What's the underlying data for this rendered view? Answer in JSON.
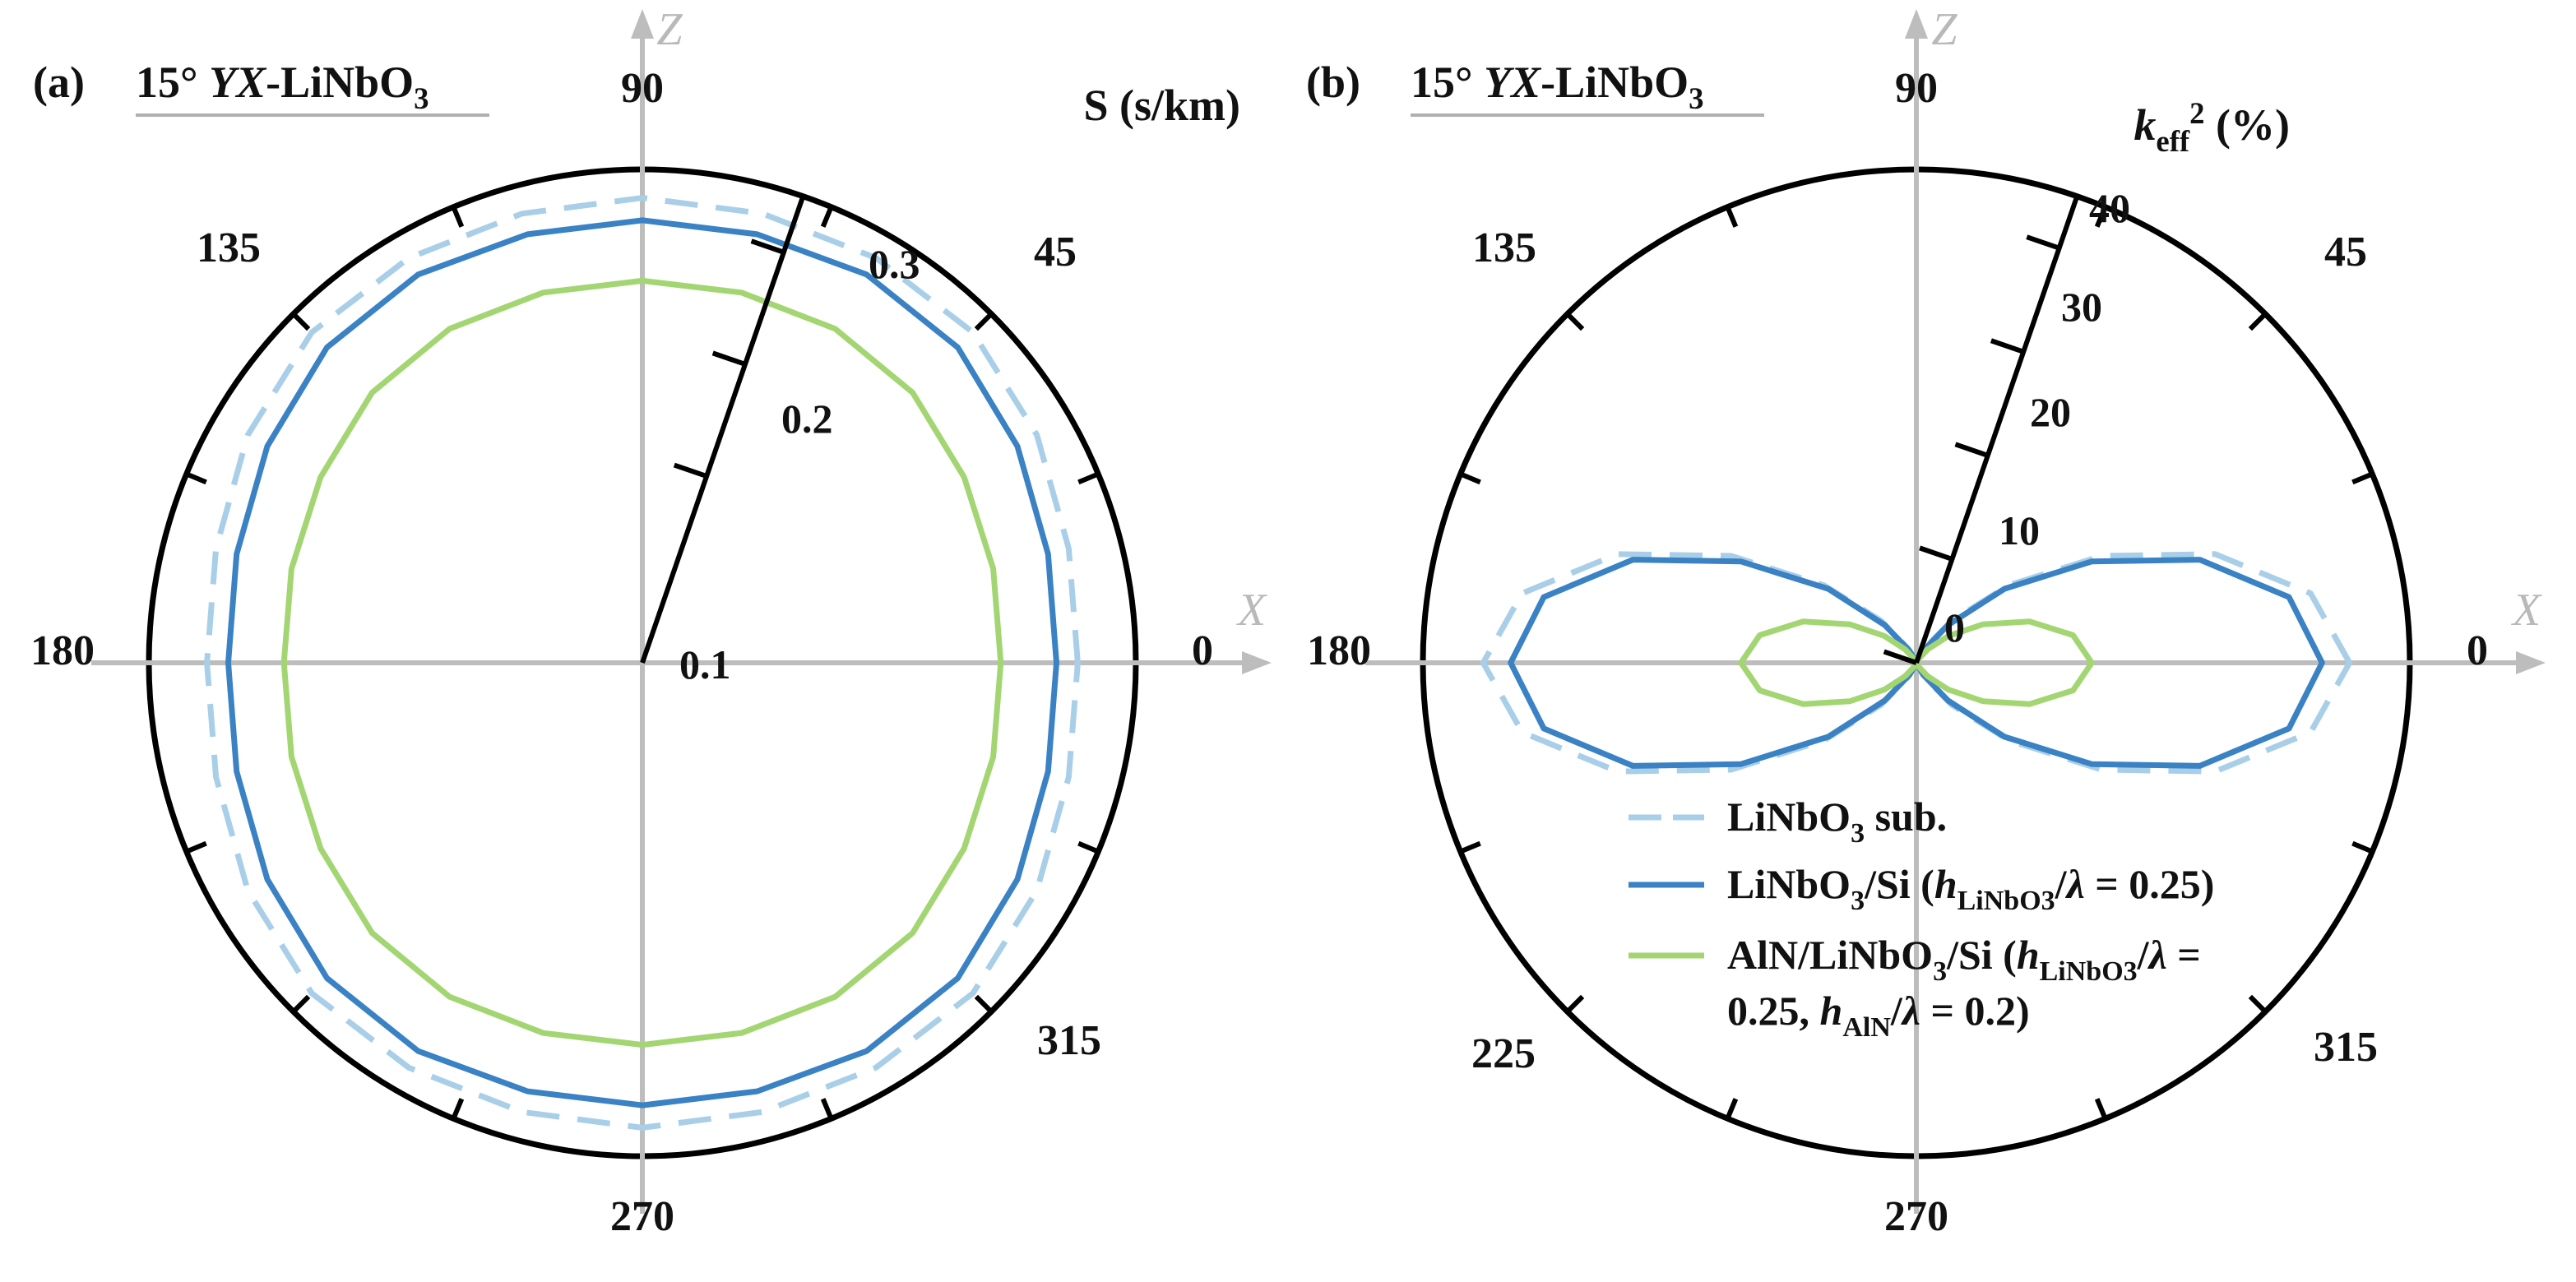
{
  "chart_data": [
    {
      "type": "polar-line",
      "panel_label": "(a)",
      "title": "15° YX-LiNbO3",
      "title_parts": {
        "pre": "15° ",
        "italic": "YX",
        "post": "-LiNbO",
        "sub": "3"
      },
      "radial_axis_label": "S (s/km)",
      "radial_range": [
        0.1,
        0.35
      ],
      "radial_ticks": [
        "0.1",
        "0.2",
        "0.3"
      ],
      "angle_labels": [
        "0",
        "45",
        "90",
        "135",
        "180",
        "270",
        "315"
      ],
      "x_axis_name": "X",
      "z_axis_name": "Z",
      "grid": false,
      "series": [
        {
          "color": "#a9cfe8",
          "dash": true,
          "theta": [
            0,
            15,
            30,
            45,
            60,
            75,
            90,
            105,
            120,
            135,
            150,
            165,
            180,
            195,
            210,
            225,
            240,
            255,
            270,
            285,
            300,
            315,
            330,
            345,
            360
          ],
          "r": [
            0.301,
            0.306,
            0.318,
            0.328,
            0.328,
            0.326,
            0.326,
            0.326,
            0.328,
            0.328,
            0.318,
            0.306,
            0.301,
            0.306,
            0.318,
            0.328,
            0.328,
            0.326,
            0.326,
            0.326,
            0.328,
            0.328,
            0.318,
            0.306,
            0.301
          ]
        },
        {
          "color": "#3a82c4",
          "dash": false,
          "theta": [
            0,
            15,
            30,
            45,
            60,
            75,
            90,
            105,
            120,
            135,
            150,
            165,
            180,
            195,
            210,
            225,
            240,
            255,
            270,
            285,
            300,
            315,
            330,
            345,
            360
          ],
          "r": [
            0.283,
            0.288,
            0.299,
            0.31,
            0.312,
            0.308,
            0.307,
            0.308,
            0.312,
            0.31,
            0.299,
            0.288,
            0.283,
            0.288,
            0.299,
            0.31,
            0.312,
            0.308,
            0.307,
            0.308,
            0.312,
            0.31,
            0.299,
            0.288,
            0.283
          ]
        },
        {
          "color": "#a3d672",
          "dash": false,
          "theta": [
            0,
            15,
            30,
            45,
            60,
            75,
            90,
            105,
            120,
            135,
            150,
            165,
            180,
            195,
            210,
            225,
            240,
            255,
            270,
            285,
            300,
            315,
            330,
            345,
            360
          ],
          "r": [
            0.236,
            0.24,
            0.247,
            0.256,
            0.259,
            0.257,
            0.256,
            0.257,
            0.259,
            0.256,
            0.247,
            0.24,
            0.236,
            0.24,
            0.247,
            0.256,
            0.259,
            0.257,
            0.256,
            0.257,
            0.259,
            0.256,
            0.247,
            0.24,
            0.236
          ]
        }
      ]
    },
    {
      "type": "polar-line",
      "panel_label": "(b)",
      "title": "15° YX-LiNbO3",
      "title_parts": {
        "pre": "15° ",
        "italic": "YX",
        "post": "-LiNbO",
        "sub": "3"
      },
      "radial_axis_label": "keff2 (%)",
      "radial_label_parts": {
        "italic": "k",
        "sub": "eff",
        "sup": "2",
        "post": " (%)"
      },
      "radial_range": [
        0,
        45
      ],
      "radial_ticks": [
        "0",
        "10",
        "20",
        "30",
        "40"
      ],
      "angle_labels": [
        "0",
        "45",
        "90",
        "135",
        "180",
        "225",
        "270",
        "315"
      ],
      "x_axis_name": "X",
      "z_axis_name": "Z",
      "grid": false,
      "series": [
        {
          "name": "LiNbO3 sub.",
          "color": "#a9cfe8",
          "dash": true,
          "theta": [
            0,
            10,
            20,
            30,
            40,
            50,
            60,
            70,
            80,
            90,
            100,
            110,
            120,
            130,
            140,
            150,
            160,
            170,
            180,
            190,
            200,
            210,
            220,
            230,
            240,
            250,
            260,
            270,
            280,
            290,
            300,
            310,
            320,
            330,
            340,
            350,
            360
          ],
          "r": [
            39.5,
            36.5,
            29.0,
            19.5,
            11.0,
            5.0,
            1.5,
            0.3,
            0.0,
            0.0,
            0.0,
            0.3,
            1.5,
            5.0,
            11.0,
            19.5,
            29.0,
            36.5,
            39.5,
            36.5,
            29.0,
            19.5,
            11.0,
            5.0,
            1.5,
            0.3,
            0.0,
            0.0,
            0.0,
            0.3,
            1.5,
            5.0,
            11.0,
            19.5,
            29.0,
            36.5,
            39.5
          ]
        },
        {
          "name": "LiNbO3/Si (hLiNbO3/λ = 0.25)",
          "color": "#3a82c4",
          "dash": false,
          "theta": [
            0,
            10,
            20,
            30,
            40,
            50,
            60,
            70,
            80,
            90,
            100,
            110,
            120,
            130,
            140,
            150,
            160,
            170,
            180,
            190,
            200,
            210,
            220,
            230,
            240,
            250,
            260,
            270,
            280,
            290,
            300,
            310,
            320,
            330,
            340,
            350,
            360
          ],
          "r": [
            37.0,
            34.5,
            27.5,
            18.5,
            10.5,
            4.5,
            1.3,
            0.2,
            0.0,
            0.0,
            0.0,
            0.2,
            1.3,
            4.5,
            10.5,
            18.5,
            27.5,
            34.5,
            37.0,
            34.5,
            27.5,
            18.5,
            10.5,
            4.5,
            1.3,
            0.2,
            0.0,
            0.0,
            0.0,
            0.2,
            1.3,
            4.5,
            10.5,
            18.5,
            27.5,
            34.5,
            37.0
          ]
        },
        {
          "name": "AlN/LiNbO3/Si (hLiNbO3/λ = 0.25, hAlN/λ = 0.2)",
          "color": "#a3d672",
          "dash": false,
          "theta": [
            0,
            10,
            20,
            30,
            40,
            50,
            60,
            70,
            80,
            90,
            100,
            110,
            120,
            130,
            140,
            150,
            160,
            170,
            180,
            190,
            200,
            210,
            220,
            230,
            240,
            250,
            260,
            270,
            280,
            290,
            300,
            310,
            320,
            330,
            340,
            350,
            360
          ],
          "r": [
            16.0,
            14.5,
            11.0,
            7.0,
            3.8,
            1.6,
            0.4,
            0.0,
            0.0,
            0.0,
            0.0,
            0.0,
            0.4,
            1.6,
            3.8,
            7.0,
            11.0,
            14.5,
            16.0,
            14.5,
            11.0,
            7.0,
            3.8,
            1.6,
            0.4,
            0.0,
            0.0,
            0.0,
            0.0,
            0.0,
            0.4,
            1.6,
            3.8,
            7.0,
            11.0,
            14.5,
            16.0
          ]
        }
      ],
      "legend_position": "bottom-right",
      "legend": [
        {
          "label": "LiNbO3 sub.",
          "parts": [
            [
              "",
              "LiNbO"
            ],
            [
              "sub",
              "3"
            ],
            [
              "",
              " sub."
            ]
          ]
        },
        {
          "label": "LiNbO3/Si (hLiNbO3/λ = 0.25)",
          "parts": [
            [
              "",
              "LiNbO"
            ],
            [
              "sub",
              "3"
            ],
            [
              "",
              "/Si ("
            ],
            [
              "i",
              "h"
            ],
            [
              "sub",
              "LiNbO3"
            ],
            [
              "",
              "/"
            ],
            [
              "i",
              "λ"
            ],
            [
              "",
              " = 0.25)"
            ]
          ]
        },
        {
          "label": "AlN/LiNbO3/Si (hLiNbO3/λ = 0.25, hAlN/λ = 0.2)",
          "parts": [
            [
              "",
              "AlN/LiNbO"
            ],
            [
              "sub",
              "3"
            ],
            [
              "",
              "/Si ("
            ],
            [
              "i",
              "h"
            ],
            [
              "sub",
              "LiNbO3"
            ],
            [
              "",
              "/"
            ],
            [
              "i",
              "λ"
            ],
            [
              "",
              " ="
            ]
          ],
          "parts2": [
            [
              "",
              "0.25, "
            ],
            [
              "i",
              "h"
            ],
            [
              "sub",
              "AlN"
            ],
            [
              "",
              "/"
            ],
            [
              "i",
              "λ"
            ],
            [
              "",
              " = 0.2)"
            ]
          ]
        }
      ]
    }
  ]
}
